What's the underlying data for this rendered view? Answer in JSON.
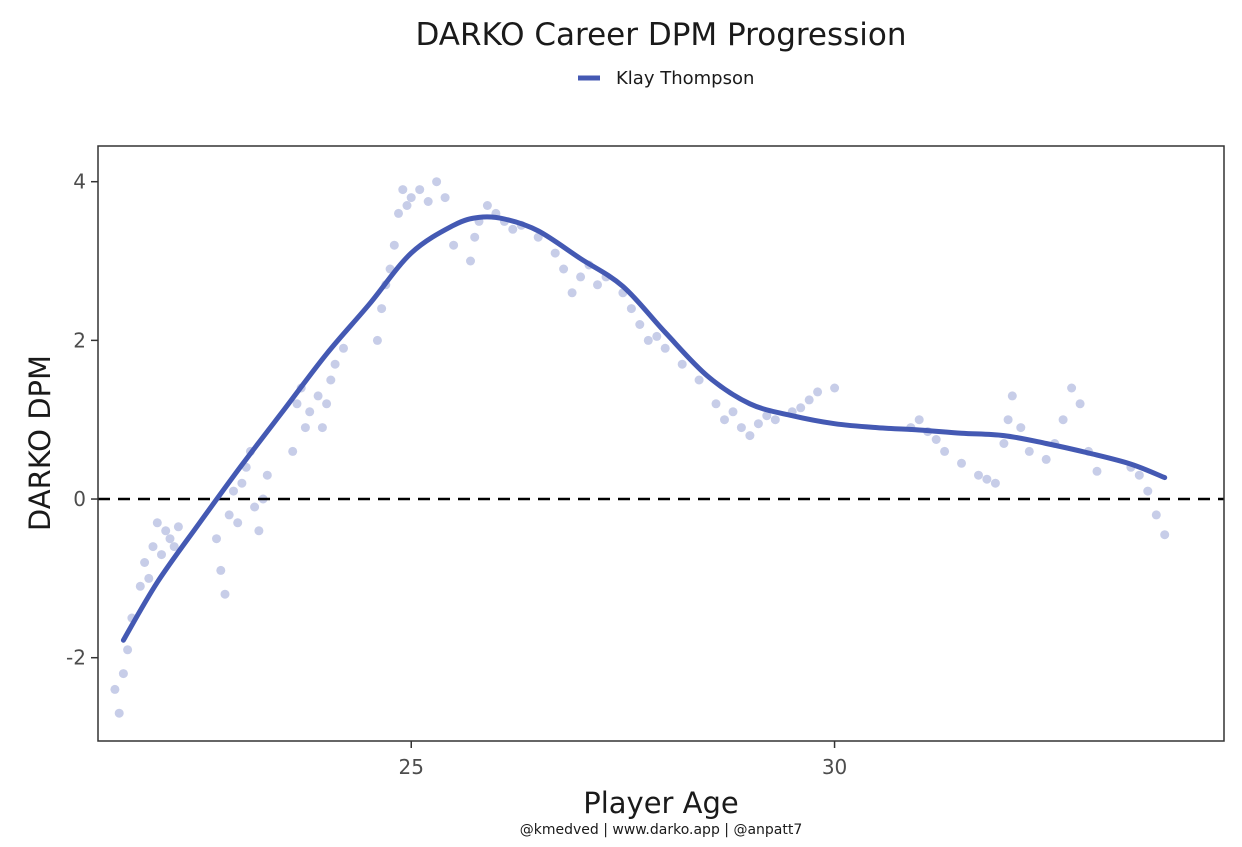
{
  "chart_data": {
    "type": "scatter",
    "title": "DARKO Career DPM Progression",
    "xlabel": "Player Age",
    "ylabel": "DARKO DPM",
    "caption": "@kmedved | www.darko.app | @anpatt7",
    "xlim": [
      21.3,
      34.6
    ],
    "ylim": [
      -3.05,
      4.45
    ],
    "x_ticks": [
      25,
      30
    ],
    "x_tick_labels": [
      "25",
      "30"
    ],
    "y_ticks": [
      -2,
      0,
      2,
      4
    ],
    "y_tick_labels": [
      "-2",
      "0",
      "2",
      "4"
    ],
    "reference_line": {
      "y": 0,
      "style": "dashed"
    },
    "grid": false,
    "legend_position": "top",
    "colors": {
      "series": "#4459b3",
      "reference": "#000000",
      "frame": "#333333"
    },
    "series": [
      {
        "name": "Klay Thompson",
        "kind": "smooth",
        "x": [
          21.6,
          22.0,
          22.5,
          23.0,
          23.5,
          24.0,
          24.5,
          25.0,
          25.5,
          25.8,
          26.1,
          26.5,
          27.0,
          27.5,
          28.0,
          28.5,
          29.0,
          29.5,
          30.0,
          30.5,
          31.0,
          31.5,
          32.0,
          32.5,
          33.0,
          33.5,
          33.9
        ],
        "y": [
          -1.78,
          -1.05,
          -0.3,
          0.43,
          1.13,
          1.83,
          2.45,
          3.1,
          3.45,
          3.55,
          3.53,
          3.38,
          3.03,
          2.68,
          2.1,
          1.55,
          1.2,
          1.05,
          0.95,
          0.9,
          0.87,
          0.83,
          0.8,
          0.7,
          0.58,
          0.44,
          0.27
        ]
      },
      {
        "name": "Klay Thompson",
        "kind": "points",
        "x": [
          21.5,
          21.55,
          21.6,
          21.65,
          21.7,
          21.8,
          21.85,
          21.9,
          21.95,
          22.0,
          22.05,
          22.1,
          22.15,
          22.2,
          22.25,
          22.7,
          22.75,
          22.8,
          22.85,
          22.9,
          22.95,
          23.0,
          23.05,
          23.1,
          23.15,
          23.2,
          23.25,
          23.3,
          23.6,
          23.65,
          23.7,
          23.75,
          23.8,
          23.9,
          23.95,
          24.0,
          24.05,
          24.1,
          24.2,
          24.6,
          24.65,
          24.7,
          24.75,
          24.8,
          24.85,
          24.9,
          24.95,
          25.0,
          25.1,
          25.2,
          25.3,
          25.4,
          25.5,
          25.7,
          25.75,
          25.8,
          25.9,
          26.0,
          26.1,
          26.2,
          26.3,
          26.5,
          26.7,
          26.8,
          26.9,
          27.0,
          27.1,
          27.2,
          27.3,
          27.5,
          27.6,
          27.7,
          27.8,
          27.9,
          28.0,
          28.2,
          28.4,
          28.6,
          28.7,
          28.8,
          28.9,
          29.0,
          29.1,
          29.2,
          29.3,
          29.5,
          29.6,
          29.7,
          29.8,
          30.0,
          30.9,
          31.0,
          31.1,
          31.2,
          31.3,
          31.5,
          31.7,
          31.8,
          31.9,
          32.0,
          32.05,
          32.1,
          32.2,
          32.3,
          32.5,
          32.6,
          32.7,
          32.8,
          32.9,
          33.0,
          33.1,
          33.5,
          33.6,
          33.7,
          33.8,
          33.9
        ],
        "y": [
          -2.4,
          -2.7,
          -2.2,
          -1.9,
          -1.5,
          -1.1,
          -0.8,
          -1.0,
          -0.6,
          -0.3,
          -0.7,
          -0.4,
          -0.5,
          -0.6,
          -0.35,
          -0.5,
          -0.9,
          -1.2,
          -0.2,
          0.1,
          -0.3,
          0.2,
          0.4,
          0.6,
          -0.1,
          -0.4,
          0.0,
          0.3,
          0.6,
          1.2,
          1.4,
          0.9,
          1.1,
          1.3,
          0.9,
          1.2,
          1.5,
          1.7,
          1.9,
          2.0,
          2.4,
          2.7,
          2.9,
          3.2,
          3.6,
          3.9,
          3.7,
          3.8,
          3.9,
          3.75,
          4.0,
          3.8,
          3.2,
          3.0,
          3.3,
          3.5,
          3.7,
          3.6,
          3.5,
          3.4,
          3.45,
          3.3,
          3.1,
          2.9,
          2.6,
          2.8,
          2.95,
          2.7,
          2.8,
          2.6,
          2.4,
          2.2,
          2.0,
          2.05,
          1.9,
          1.7,
          1.5,
          1.2,
          1.0,
          1.1,
          0.9,
          0.8,
          0.95,
          1.05,
          1.0,
          1.1,
          1.15,
          1.25,
          1.35,
          1.4,
          0.9,
          1.0,
          0.85,
          0.75,
          0.6,
          0.45,
          0.3,
          0.25,
          0.2,
          0.7,
          1.0,
          1.3,
          0.9,
          0.6,
          0.5,
          0.7,
          1.0,
          1.4,
          1.2,
          0.6,
          0.35,
          0.4,
          0.3,
          0.1,
          -0.2,
          -0.45
        ]
      }
    ]
  }
}
